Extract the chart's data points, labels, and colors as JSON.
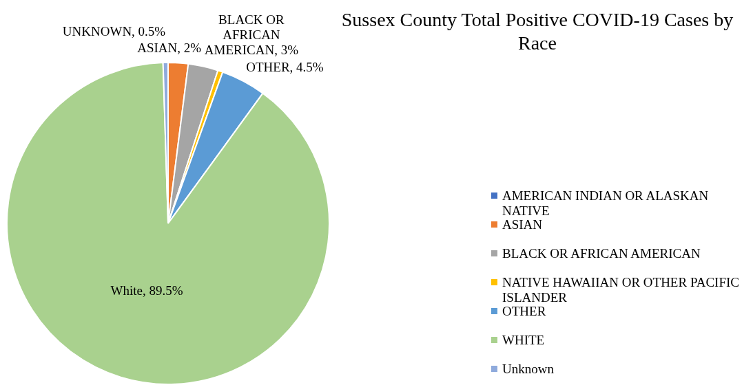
{
  "chart_data": {
    "type": "pie",
    "title": "Sussex County Total Positive COVID-19 Cases by Race",
    "categories": [
      "AMERICAN INDIAN OR ALASKAN NATIVE",
      "ASIAN",
      "BLACK OR AFRICAN AMERICAN",
      "NATIVE HAWAIIAN OR OTHER PACIFIC ISLANDER",
      "OTHER",
      "WHITE",
      "Unknown"
    ],
    "values": [
      0,
      2,
      3,
      0.5,
      4.5,
      89.5,
      0.5
    ],
    "colors": [
      "#4472c4",
      "#ed7d31",
      "#a5a5a5",
      "#ffc000",
      "#5b9bd5",
      "#a9d18e",
      "#8faadc"
    ],
    "value_labels": [
      null,
      "ASIAN, 2%",
      "BLACK OR AFRICAN AMERICAN, 3%",
      null,
      "OTHER, 4.5%",
      "White, 89.5%",
      "UNKNOWN, 0.5%"
    ],
    "legend": "right"
  }
}
